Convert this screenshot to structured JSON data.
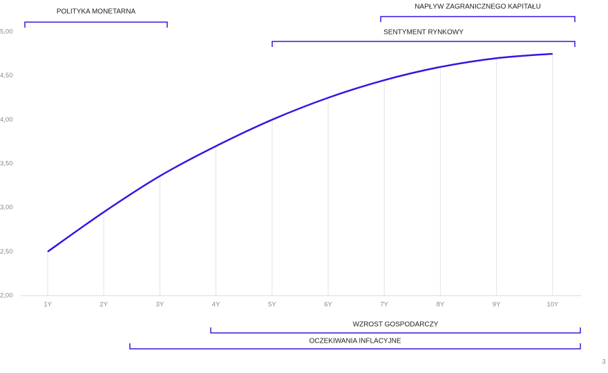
{
  "chart_data": {
    "type": "line",
    "categories": [
      "1Y",
      "2Y",
      "3Y",
      "4Y",
      "5Y",
      "6Y",
      "7Y",
      "8Y",
      "9Y",
      "10Y"
    ],
    "series": [
      {
        "color": "#3a12e0",
        "values": [
          2.5,
          2.95,
          3.36,
          3.7,
          4.0,
          4.25,
          4.45,
          4.6,
          4.7,
          4.75
        ]
      }
    ],
    "ylim": [
      2,
      5
    ],
    "yticks": [
      {
        "value": 2,
        "label": "2,00"
      },
      {
        "value": 2.5,
        "label": "2,50"
      },
      {
        "value": 3,
        "label": "3,00"
      },
      {
        "value": 3.5,
        "label": "3,50"
      },
      {
        "value": 4,
        "label": "4,00"
      },
      {
        "value": 4.5,
        "label": "4,50"
      },
      {
        "value": 5,
        "label": "5,00"
      }
    ],
    "annotations": [
      "POLITYKA MONETARNA",
      "NAPŁYW ZAGRANICZNEGO KAPITAŁU",
      "SENTYMENT RYNKOWY",
      "WZROST GOSPODARCZY",
      "OCZEKIWANIA INFLACYJNE"
    ]
  },
  "page_number": "3"
}
